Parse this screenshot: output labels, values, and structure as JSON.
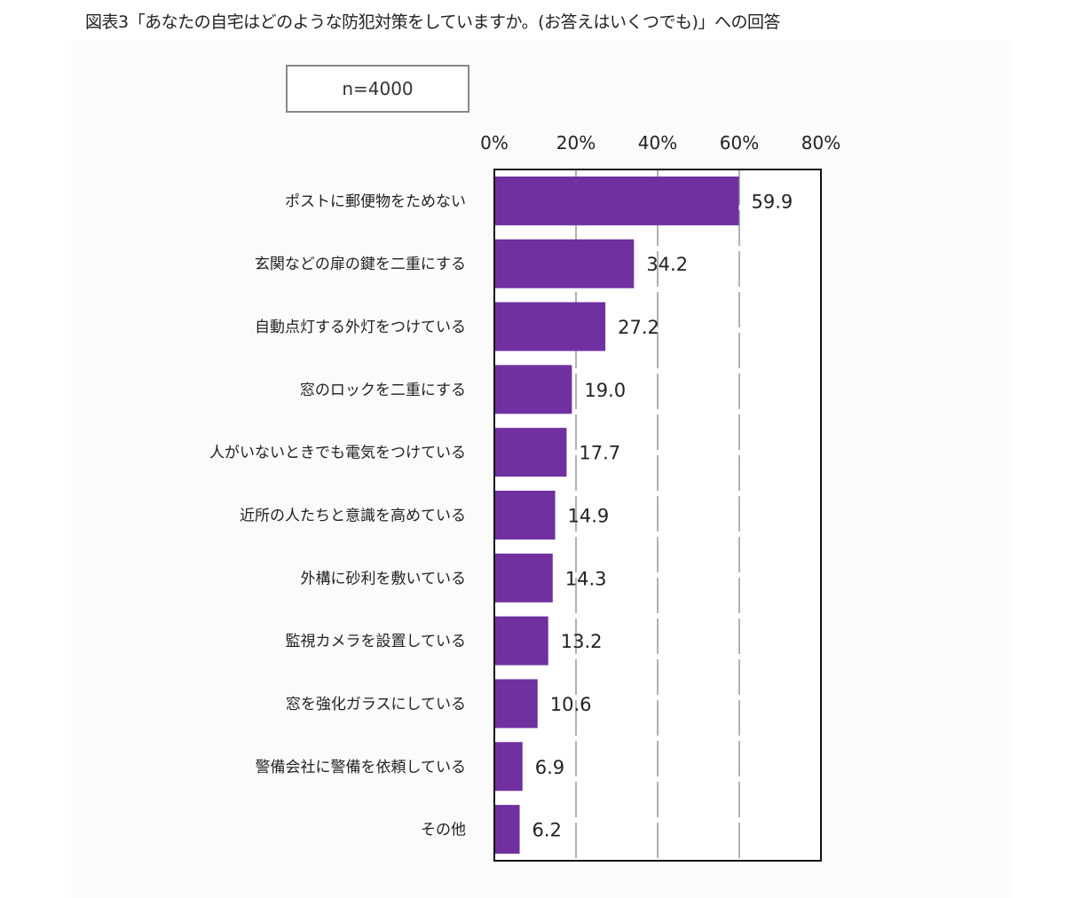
{
  "chart_data": {
    "type": "bar",
    "orientation": "horizontal",
    "title": "図表3「あなたの自宅はどのような防犯対策をしていますか。(お答えはいくつでも)」への回答",
    "annotation": "n=4000",
    "categories": [
      "ポストに郵便物をためない",
      "玄関などの扉の鍵を二重にする",
      "自動点灯する外灯をつけている",
      "窓のロックを二重にする",
      "人がいないときでも電気をつけている",
      "近所の人たちと意識を高めている",
      "外構に砂利を敷いている",
      "監視カメラを設置している",
      "窓を強化ガラスにしている",
      "警備会社に警備を依頼している",
      "その他"
    ],
    "values": [
      59.9,
      34.2,
      27.2,
      19.0,
      17.7,
      14.9,
      14.3,
      13.2,
      10.6,
      6.9,
      6.2
    ],
    "value_labels": [
      "59.9",
      "34.2",
      "27.2",
      "19.0",
      "17.7",
      "14.9",
      "14.3",
      "13.2",
      "10.6",
      "6.9",
      "6.2"
    ],
    "xlim": [
      0,
      80
    ],
    "ticks": [
      "0%",
      "20%",
      "40%",
      "60%",
      "80%"
    ],
    "tick_values": [
      0,
      20,
      40,
      60,
      80
    ],
    "tick_position": "top",
    "grid": true,
    "bar_color": "#7030a0"
  }
}
